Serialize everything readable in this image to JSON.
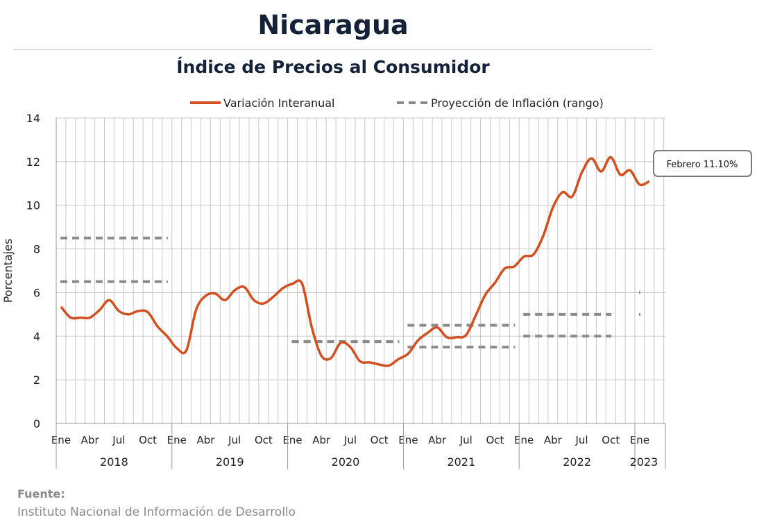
{
  "header": {
    "title": "Nicaragua",
    "subtitle": "Índice de Precios al Consumidor"
  },
  "source": {
    "label": "Fuente:",
    "text": "Instituto Nacional de Información de  Desarrollo"
  },
  "callout": {
    "text": "Febrero 11.10%"
  },
  "colors": {
    "series": "#d2501f",
    "projection": "#8c8c8c",
    "grid": "#c8c8c8",
    "title": "#132238"
  },
  "chart_data": {
    "type": "line",
    "ylabel": "Porcentajes",
    "ylim": [
      0,
      14
    ],
    "yticks": [
      0,
      2,
      4,
      6,
      8,
      10,
      12,
      14
    ],
    "grid": true,
    "legend_position": "top",
    "month_labels": [
      "Ene",
      "Abr",
      "Jul",
      "Oct"
    ],
    "years": [
      "2018",
      "2019",
      "2020",
      "2021",
      "2022",
      "2023"
    ],
    "series": [
      {
        "name": "Variación Interanual",
        "style": "solid",
        "x_start": "2018-01",
        "values": [
          5.35,
          4.85,
          4.85,
          4.85,
          5.2,
          5.65,
          5.15,
          5.0,
          5.15,
          5.1,
          4.45,
          4.0,
          3.45,
          3.35,
          5.2,
          5.85,
          5.95,
          5.65,
          6.1,
          6.25,
          5.65,
          5.5,
          5.8,
          6.2,
          6.4,
          6.4,
          4.4,
          3.1,
          3.0,
          3.7,
          3.5,
          2.85,
          2.8,
          2.7,
          2.65,
          2.95,
          3.2,
          3.8,
          4.15,
          4.4,
          3.95,
          3.95,
          4.05,
          4.95,
          5.9,
          6.45,
          7.1,
          7.2,
          7.65,
          7.75,
          8.6,
          9.9,
          10.6,
          10.4,
          11.5,
          12.15,
          11.55,
          12.2,
          11.4,
          11.6,
          10.95,
          11.1
        ]
      },
      {
        "name": "Proyección de Inflación (rango)",
        "style": "dashed",
        "segments": [
          {
            "from": "2018-01",
            "to": "2018-12",
            "values": [
              6.5,
              8.5
            ]
          },
          {
            "from": "2020-01",
            "to": "2020-12",
            "values": [
              3.75,
              3.75
            ]
          },
          {
            "from": "2021-01",
            "to": "2021-12",
            "values": [
              3.5,
              4.5
            ]
          },
          {
            "from": "2022-01",
            "to": "2022-10",
            "values": [
              4.0,
              5.0
            ]
          },
          {
            "from": "2023-01",
            "to": "2023-01",
            "values": [
              5.0,
              6.0
            ]
          }
        ]
      }
    ]
  }
}
